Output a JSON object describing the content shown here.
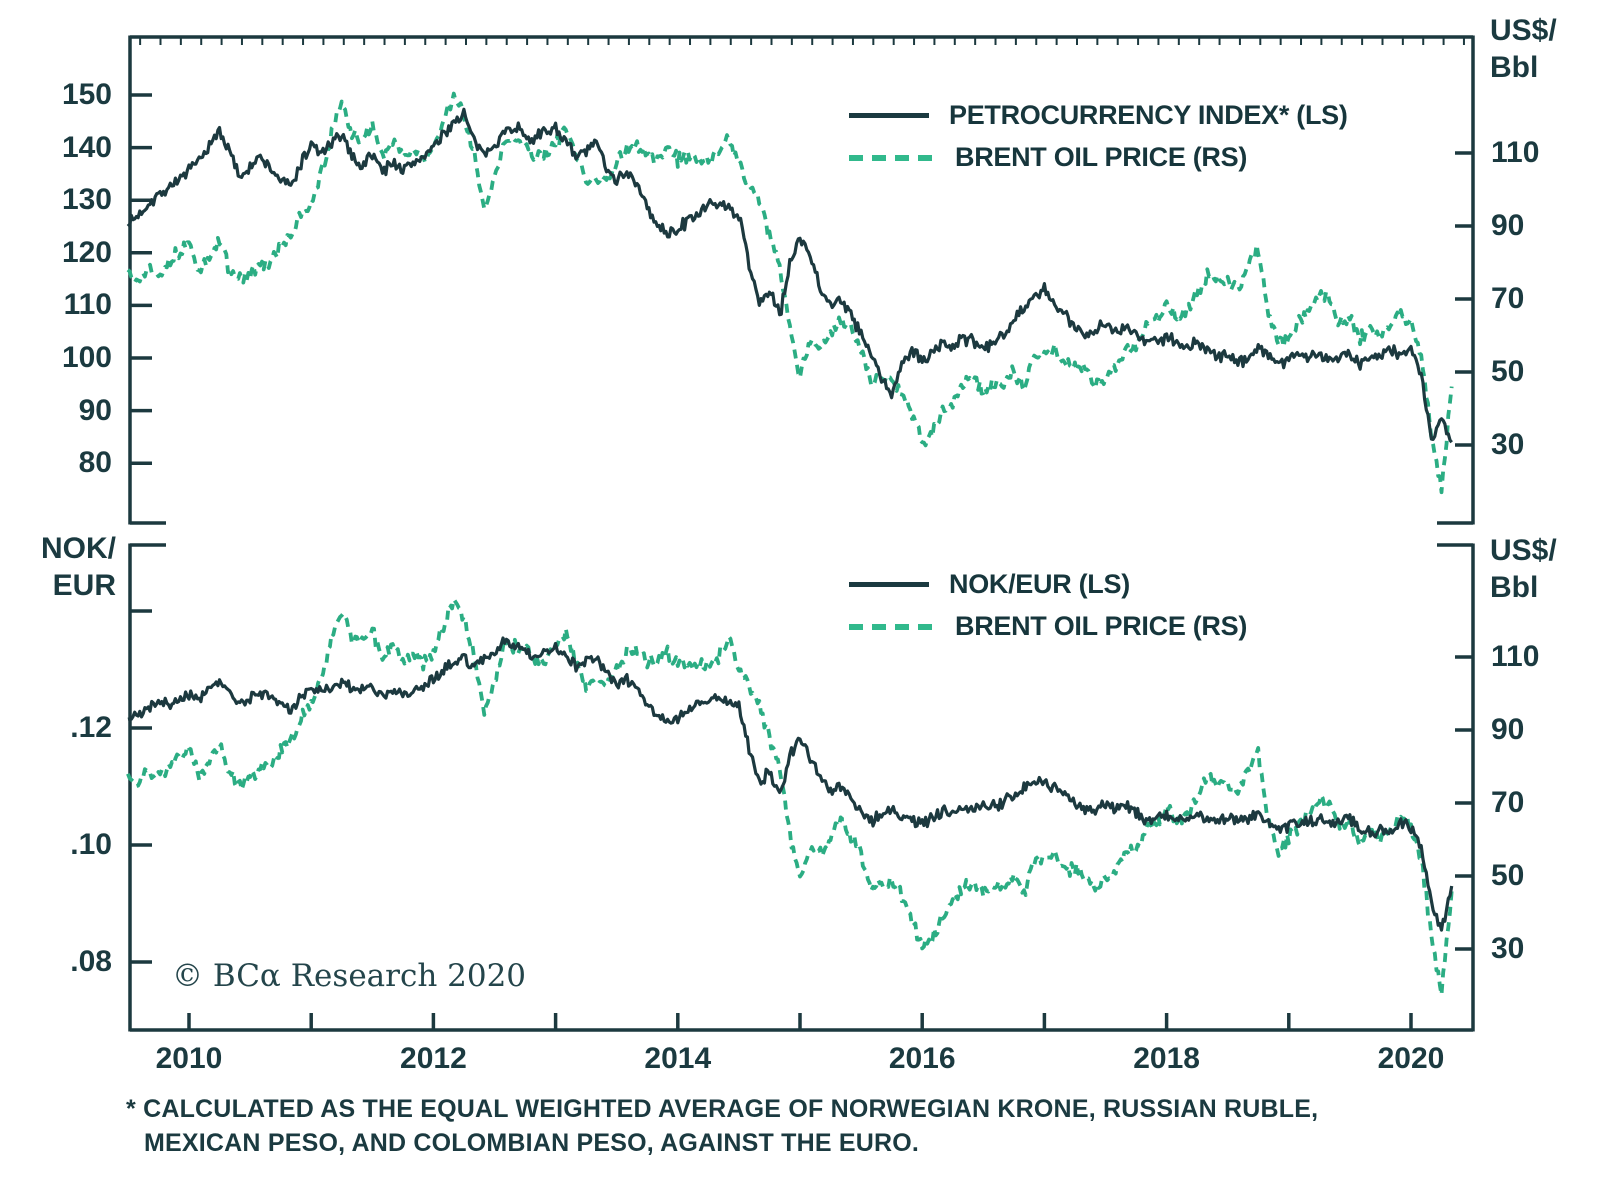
{
  "colors": {
    "dark_line": "#1c393f",
    "green_line": "#2bad83",
    "legend_green": "#31b98c",
    "text": "#1b3a40",
    "background": "#ffffff"
  },
  "legends": {
    "top": [
      {
        "label": "PETROCURRENCY INDEX* (LS)",
        "style": "solid"
      },
      {
        "label": "BRENT OIL PRICE (RS)",
        "style": "dashed"
      }
    ],
    "bottom": [
      {
        "label": "NOK/EUR (LS)",
        "style": "solid"
      },
      {
        "label": "BRENT OIL PRICE (RS)",
        "style": "dashed"
      }
    ]
  },
  "axis_titles": {
    "top_right": [
      "US$/",
      "Bbl"
    ],
    "bottom_left": [
      "NOK/",
      "EUR"
    ],
    "bottom_right": [
      "US$/",
      "Bbl"
    ]
  },
  "x_axis": {
    "labels": [
      "2010",
      "2012",
      "2014",
      "2016",
      "2018",
      "2020"
    ],
    "label_years": [
      2010,
      2012,
      2014,
      2016,
      2018,
      2020
    ],
    "year_tick_step": 1
  },
  "copyright": "© BCα Research 2020",
  "footnote_lines": [
    "* CALCULATED AS THE EQUAL WEIGHTED AVERAGE OF NORWEGIAN KRONE, RUSSIAN RUBLE,",
    "MEXICAN PESO, AND COLOMBIAN PESO, AGAINST THE EURO."
  ],
  "chart_data": [
    {
      "type": "line",
      "panel": "top",
      "x_start": 2009.5,
      "x_step": 0.0833333,
      "x_range": [
        2009.5,
        2020.5
      ],
      "grid": false,
      "legend_position": "top-right",
      "left_axis": {
        "label": "PETROCURRENCY INDEX",
        "ticks": [
          150,
          140,
          130,
          120,
          110,
          100,
          90,
          80
        ],
        "tick_labels": [
          "150",
          "140",
          "130",
          "120",
          "110",
          "100",
          "90",
          "80"
        ]
      },
      "right_axis": {
        "label": "US$/Bbl",
        "ticks": [
          110,
          90,
          70,
          50,
          30
        ],
        "tick_labels": [
          "110",
          "90",
          "70",
          "50",
          "30"
        ]
      },
      "series": [
        {
          "name": "PETROCURRENCY INDEX* (LS)",
          "axis": "left",
          "style": "solid",
          "values": [
            125.5,
            127,
            129.5,
            131,
            132.5,
            134,
            135.5,
            137.5,
            140,
            143.5,
            139,
            134.5,
            136.5,
            138,
            136,
            134,
            132.5,
            137,
            140.5,
            139,
            140.5,
            142.5,
            138.5,
            136.5,
            139,
            135.5,
            137.5,
            135.5,
            137,
            138.5,
            140,
            142.5,
            145,
            146.5,
            141,
            138.5,
            141,
            143,
            144,
            142.5,
            141.5,
            143,
            144,
            141,
            138,
            139.5,
            141,
            136.5,
            134,
            135.5,
            133,
            128.5,
            125,
            123.5,
            124.5,
            126,
            127.5,
            129,
            129.5,
            128.5,
            127,
            118,
            110.5,
            113,
            108,
            117.5,
            123.5,
            119.5,
            113.5,
            110,
            111.5,
            108,
            104.5,
            100.5,
            96,
            93,
            99,
            101,
            99.5,
            101,
            103,
            102,
            104,
            103,
            101.5,
            103,
            105,
            107.5,
            109.5,
            111.5,
            113,
            110,
            108,
            106,
            104.5,
            105.5,
            106.5,
            105,
            106,
            104.5,
            103,
            103.5,
            104,
            103,
            102,
            103,
            101.5,
            100,
            101,
            99.5,
            100,
            102,
            100.5,
            99,
            100,
            101,
            100,
            101,
            99.5,
            100.5,
            101,
            99,
            100,
            100.5,
            101.5,
            101,
            101.5,
            97,
            84,
            88.5,
            84
          ]
        },
        {
          "name": "BRENT OIL PRICE (RS)",
          "axis": "right",
          "style": "dashed",
          "values": [
            78,
            74.5,
            79,
            77,
            80,
            83,
            85,
            77.5,
            81,
            86,
            78,
            75,
            77,
            79,
            80,
            84,
            87,
            93,
            97,
            104,
            115,
            123.5,
            115,
            114,
            117,
            110,
            113,
            109,
            111,
            108,
            111,
            119,
            125.5,
            120,
            110,
            95.5,
            103,
            113.5,
            113,
            112,
            109,
            109.5,
            113,
            116.5,
            109,
            102.5,
            103,
            103,
            107.5,
            111,
            112,
            109,
            108,
            111,
            108,
            109,
            107.5,
            108,
            110,
            114.5,
            107,
            101.5,
            97,
            87.5,
            79,
            62,
            48.5,
            58,
            56,
            60.5,
            64.5,
            61.5,
            56.5,
            47,
            48,
            48.5,
            44,
            38,
            30.5,
            33,
            39,
            42,
            47,
            48.5,
            45,
            46.5,
            47,
            50,
            45.5,
            54,
            55,
            56,
            51.5,
            52,
            50.5,
            47,
            49,
            51.5,
            56,
            57.5,
            62.5,
            64,
            69,
            65,
            66.5,
            72,
            77,
            75,
            74.5,
            73,
            79,
            84,
            65,
            57.5,
            60,
            64,
            67,
            71,
            70,
            63,
            64.5,
            59,
            62,
            60,
            63,
            66,
            63.5,
            55,
            33,
            17.5,
            46
          ]
        }
      ]
    },
    {
      "type": "line",
      "panel": "bottom",
      "x_start": 2009.5,
      "x_step": 0.0833333,
      "x_range": [
        2009.5,
        2020.5
      ],
      "grid": false,
      "legend_position": "top-right",
      "left_axis": {
        "label": "NOK/EUR",
        "ticks": [
          0.14,
          0.12,
          0.1,
          0.08
        ],
        "tick_labels": [
          "",
          ".12",
          ".10",
          ".08"
        ]
      },
      "right_axis": {
        "label": "US$/Bbl",
        "ticks": [
          110,
          90,
          70,
          50,
          30
        ],
        "tick_labels": [
          "110",
          "90",
          "70",
          "50",
          "30"
        ]
      },
      "series": [
        {
          "name": "NOK/EUR (LS)",
          "axis": "left",
          "style": "solid",
          "values": [
            0.1215,
            0.1225,
            0.1235,
            0.1245,
            0.124,
            0.125,
            0.1258,
            0.125,
            0.1268,
            0.1278,
            0.1258,
            0.124,
            0.125,
            0.1262,
            0.1252,
            0.124,
            0.1232,
            0.1252,
            0.1268,
            0.1262,
            0.127,
            0.1282,
            0.1266,
            0.1262,
            0.1272,
            0.1256,
            0.1266,
            0.1258,
            0.1264,
            0.1272,
            0.1282,
            0.13,
            0.131,
            0.132,
            0.1305,
            0.1318,
            0.133,
            0.1348,
            0.1338,
            0.133,
            0.1322,
            0.133,
            0.1338,
            0.1325,
            0.1305,
            0.1315,
            0.132,
            0.1295,
            0.1275,
            0.1285,
            0.1265,
            0.124,
            0.1222,
            0.1212,
            0.1218,
            0.1228,
            0.1238,
            0.1248,
            0.1252,
            0.1245,
            0.1235,
            0.1165,
            0.1105,
            0.1125,
            0.1082,
            0.1152,
            0.1182,
            0.1152,
            0.1112,
            0.1092,
            0.1102,
            0.1078,
            0.1055,
            0.104,
            0.1052,
            0.1062,
            0.105,
            0.1038,
            0.1038,
            0.1045,
            0.1058,
            0.1052,
            0.1062,
            0.106,
            0.1068,
            0.1068,
            0.1075,
            0.1085,
            0.1095,
            0.1105,
            0.1112,
            0.1098,
            0.1088,
            0.1072,
            0.1062,
            0.106,
            0.1068,
            0.1062,
            0.1068,
            0.1055,
            0.1042,
            0.1045,
            0.1052,
            0.1045,
            0.1042,
            0.105,
            0.1042,
            0.104,
            0.1048,
            0.104,
            0.1045,
            0.1055,
            0.1042,
            0.1025,
            0.1032,
            0.104,
            0.1038,
            0.1045,
            0.1038,
            0.1042,
            0.1045,
            0.1028,
            0.102,
            0.1028,
            0.1018,
            0.1038,
            0.103,
            0.0995,
            0.09,
            0.0855,
            0.093
          ]
        },
        {
          "name": "BRENT OIL PRICE (RS)",
          "axis": "right",
          "style": "dashed",
          "values": [
            78,
            74.5,
            79,
            77,
            80,
            83,
            85,
            77.5,
            81,
            86,
            78,
            75,
            77,
            79,
            80,
            84,
            87,
            93,
            97,
            104,
            115,
            123.5,
            115,
            114,
            117,
            110,
            113,
            109,
            111,
            108,
            111,
            119,
            125.5,
            120,
            110,
            95.5,
            103,
            113.5,
            113,
            112,
            109,
            109.5,
            113,
            116.5,
            109,
            102.5,
            103,
            103,
            107.5,
            111,
            112,
            109,
            108,
            111,
            108,
            109,
            107.5,
            108,
            110,
            114.5,
            107,
            101.5,
            97,
            87.5,
            79,
            62,
            48.5,
            58,
            56,
            60.5,
            64.5,
            61.5,
            56.5,
            47,
            48,
            48.5,
            44,
            38,
            30.5,
            33,
            39,
            42,
            47,
            48.5,
            45,
            46.5,
            47,
            50,
            45.5,
            54,
            55,
            56,
            51.5,
            52,
            50.5,
            47,
            49,
            51.5,
            56,
            57.5,
            62.5,
            64,
            69,
            65,
            66.5,
            72,
            77,
            75,
            74.5,
            73,
            79,
            84,
            65,
            57.5,
            60,
            64,
            67,
            71,
            70,
            63,
            64.5,
            59,
            62,
            60,
            63,
            66,
            63.5,
            55,
            33,
            17.5,
            46
          ]
        }
      ]
    }
  ]
}
